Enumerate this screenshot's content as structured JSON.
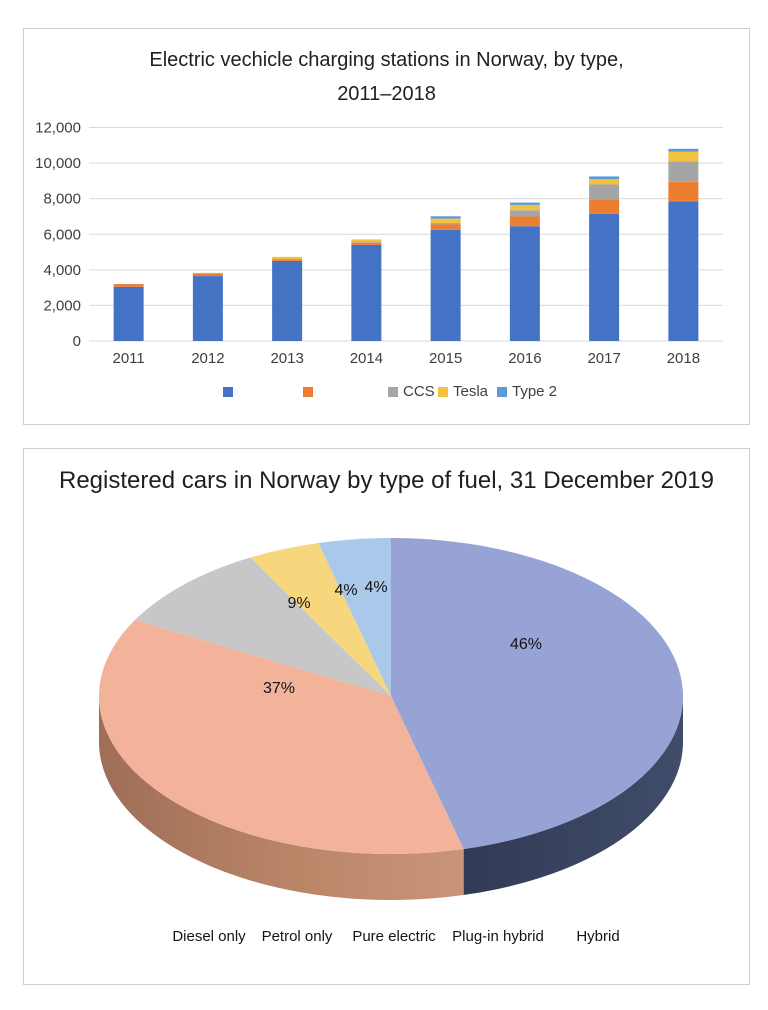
{
  "chart_data": [
    {
      "type": "bar",
      "stacked": true,
      "title": "Electric vechicle charging stations in Norway, by type, 2011–2018",
      "title_lines": [
        "Electric vechicle charging stations in Norway, by type,",
        "2011–2018"
      ],
      "categories": [
        "2011",
        "2012",
        "2013",
        "2014",
        "2015",
        "2016",
        "2017",
        "2018"
      ],
      "series": [
        {
          "name": "",
          "color": "#4472c4",
          "values": [
            3050,
            3650,
            4500,
            5400,
            6250,
            6450,
            7150,
            7850
          ]
        },
        {
          "name": "",
          "color": "#ed7d31",
          "values": [
            150,
            150,
            100,
            130,
            300,
            550,
            800,
            1100
          ]
        },
        {
          "name": "CCS",
          "color": "#a5a5a5",
          "values": [
            0,
            0,
            0,
            30,
            80,
            350,
            850,
            1150
          ]
        },
        {
          "name": "Tesla",
          "color": "#f2c140",
          "values": [
            0,
            30,
            130,
            150,
            250,
            300,
            300,
            550
          ]
        },
        {
          "name": "Type 2",
          "color": "#5b9bd5",
          "values": [
            0,
            0,
            0,
            0,
            130,
            130,
            150,
            150
          ]
        }
      ],
      "ylim": [
        0,
        12000
      ],
      "ytick_values": [
        0,
        2000,
        4000,
        6000,
        8000,
        10000,
        12000
      ],
      "ytick_labels": [
        "0",
        "2,000",
        "4,000",
        "6,000",
        "8,000",
        "10,000",
        "12,000"
      ],
      "grid": true,
      "gridline_color": "#d9d9d9",
      "legend_position": "bottom"
    },
    {
      "type": "pie",
      "effect": "3d",
      "title": "Registered cars in Norway by type of fuel, 31 December 2019",
      "labels": [
        "Diesel only",
        "Petrol only",
        "Pure electric",
        "Plug-in hybrid",
        "Hybrid"
      ],
      "values": [
        46,
        37,
        9,
        4,
        4
      ],
      "slice_labels": [
        "46%",
        "37%",
        "9%",
        "4%",
        "4%"
      ],
      "colors": [
        "#98a3d5",
        "#f2b39a",
        "#c7c7c7",
        "#f6d77d",
        "#aac8ea"
      ],
      "side_colors": [
        "#39425e",
        "#b5806a",
        "#9e9e9e",
        "#cfae52",
        "#84a7cf"
      ],
      "start_angle": 0,
      "direction": "clockwise",
      "legend_position": "bottom"
    }
  ]
}
